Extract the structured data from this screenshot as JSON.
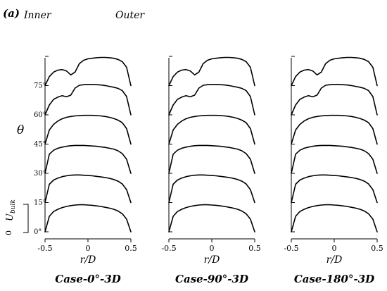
{
  "figure": {
    "panel_label": "(a)",
    "inner_label": "Inner",
    "outer_label": "Outer",
    "theta_label": "θ",
    "ubulk_label": "U",
    "ubulk_sub": "bulk",
    "ubulk_zero": "0"
  },
  "chart_data": [
    {
      "type": "line",
      "title": "Case-0°-3D",
      "xlabel": "r/D",
      "ylabel": "θ",
      "xlim": [
        -0.5,
        0.5
      ],
      "xticks": [
        "-0.5",
        "0",
        "0.5"
      ],
      "yticks": [
        "0°",
        "15°",
        "30°",
        "45°",
        "60°",
        "75°"
      ],
      "x": [
        -0.5,
        -0.45,
        -0.4,
        -0.35,
        -0.3,
        -0.25,
        -0.2,
        -0.15,
        -0.1,
        -0.05,
        0,
        0.05,
        0.1,
        0.15,
        0.2,
        0.25,
        0.3,
        0.35,
        0.4,
        0.45,
        0.5
      ],
      "series": [
        {
          "offset_deg": 0,
          "values": [
            0.0,
            0.55,
            0.72,
            0.8,
            0.86,
            0.9,
            0.93,
            0.95,
            0.96,
            0.96,
            0.95,
            0.94,
            0.92,
            0.9,
            0.87,
            0.84,
            0.8,
            0.74,
            0.64,
            0.45,
            0.0
          ]
        },
        {
          "offset_deg": 15,
          "values": [
            0.0,
            0.65,
            0.8,
            0.87,
            0.92,
            0.95,
            0.97,
            0.98,
            0.98,
            0.97,
            0.96,
            0.95,
            0.93,
            0.91,
            0.89,
            0.86,
            0.82,
            0.76,
            0.66,
            0.46,
            0.0
          ]
        },
        {
          "offset_deg": 30,
          "values": [
            0.0,
            0.68,
            0.82,
            0.89,
            0.93,
            0.96,
            0.98,
            0.99,
            0.99,
            0.99,
            0.98,
            0.97,
            0.96,
            0.94,
            0.92,
            0.89,
            0.86,
            0.8,
            0.7,
            0.5,
            0.0
          ]
        },
        {
          "offset_deg": 45,
          "values": [
            0.0,
            0.5,
            0.7,
            0.82,
            0.9,
            0.95,
            0.98,
            1.0,
            1.01,
            1.02,
            1.02,
            1.02,
            1.01,
            1.0,
            0.98,
            0.95,
            0.91,
            0.85,
            0.76,
            0.55,
            0.0
          ]
        },
        {
          "offset_deg": 60,
          "values": [
            0.0,
            0.35,
            0.55,
            0.63,
            0.68,
            0.64,
            0.7,
            0.95,
            1.05,
            1.07,
            1.08,
            1.08,
            1.07,
            1.06,
            1.04,
            1.01,
            0.98,
            0.94,
            0.86,
            0.65,
            0.0
          ]
        },
        {
          "offset_deg": 75,
          "values": [
            0.0,
            0.32,
            0.48,
            0.55,
            0.57,
            0.52,
            0.38,
            0.48,
            0.78,
            0.9,
            0.95,
            0.97,
            0.99,
            1.0,
            1.0,
            0.99,
            0.97,
            0.93,
            0.85,
            0.65,
            0.0
          ]
        }
      ]
    },
    {
      "type": "line",
      "title": "Case-90°-3D",
      "xlabel": "r/D",
      "xlim": [
        -0.5,
        0.5
      ],
      "xticks": [
        "-0.5",
        "0",
        "0.5"
      ],
      "x": [
        -0.5,
        -0.45,
        -0.4,
        -0.35,
        -0.3,
        -0.25,
        -0.2,
        -0.15,
        -0.1,
        -0.05,
        0,
        0.05,
        0.1,
        0.15,
        0.2,
        0.25,
        0.3,
        0.35,
        0.4,
        0.45,
        0.5
      ],
      "series": [
        {
          "offset_deg": 0,
          "values": [
            0.0,
            0.55,
            0.72,
            0.8,
            0.86,
            0.9,
            0.93,
            0.95,
            0.96,
            0.96,
            0.95,
            0.94,
            0.92,
            0.9,
            0.87,
            0.84,
            0.8,
            0.74,
            0.64,
            0.45,
            0.0
          ]
        },
        {
          "offset_deg": 15,
          "values": [
            0.0,
            0.65,
            0.8,
            0.87,
            0.92,
            0.95,
            0.97,
            0.98,
            0.98,
            0.97,
            0.96,
            0.95,
            0.93,
            0.91,
            0.89,
            0.86,
            0.82,
            0.76,
            0.66,
            0.46,
            0.0
          ]
        },
        {
          "offset_deg": 30,
          "values": [
            0.0,
            0.68,
            0.82,
            0.89,
            0.93,
            0.96,
            0.98,
            0.99,
            0.99,
            0.99,
            0.98,
            0.97,
            0.96,
            0.94,
            0.92,
            0.89,
            0.86,
            0.8,
            0.7,
            0.5,
            0.0
          ]
        },
        {
          "offset_deg": 45,
          "values": [
            0.0,
            0.5,
            0.7,
            0.82,
            0.9,
            0.95,
            0.98,
            1.0,
            1.01,
            1.02,
            1.02,
            1.02,
            1.01,
            1.0,
            0.98,
            0.95,
            0.91,
            0.85,
            0.76,
            0.55,
            0.0
          ]
        },
        {
          "offset_deg": 60,
          "values": [
            0.0,
            0.35,
            0.55,
            0.63,
            0.68,
            0.64,
            0.7,
            0.95,
            1.05,
            1.07,
            1.08,
            1.08,
            1.07,
            1.06,
            1.04,
            1.01,
            0.98,
            0.94,
            0.86,
            0.65,
            0.0
          ]
        },
        {
          "offset_deg": 75,
          "values": [
            0.0,
            0.32,
            0.48,
            0.55,
            0.57,
            0.52,
            0.38,
            0.48,
            0.78,
            0.9,
            0.95,
            0.97,
            0.99,
            1.0,
            1.0,
            0.99,
            0.97,
            0.93,
            0.85,
            0.65,
            0.0
          ]
        }
      ]
    },
    {
      "type": "line",
      "title": "Case-180°-3D",
      "xlabel": "r/D",
      "xlim": [
        -0.5,
        0.5
      ],
      "xticks": [
        "-0.5",
        "0",
        "0.5"
      ],
      "x": [
        -0.5,
        -0.45,
        -0.4,
        -0.35,
        -0.3,
        -0.25,
        -0.2,
        -0.15,
        -0.1,
        -0.05,
        0,
        0.05,
        0.1,
        0.15,
        0.2,
        0.25,
        0.3,
        0.35,
        0.4,
        0.45,
        0.5
      ],
      "series": [
        {
          "offset_deg": 0,
          "values": [
            0.0,
            0.55,
            0.72,
            0.8,
            0.86,
            0.9,
            0.93,
            0.95,
            0.96,
            0.96,
            0.95,
            0.94,
            0.92,
            0.9,
            0.87,
            0.84,
            0.8,
            0.74,
            0.64,
            0.45,
            0.0
          ]
        },
        {
          "offset_deg": 15,
          "values": [
            0.0,
            0.65,
            0.8,
            0.87,
            0.92,
            0.95,
            0.97,
            0.98,
            0.98,
            0.97,
            0.96,
            0.95,
            0.93,
            0.91,
            0.89,
            0.86,
            0.82,
            0.76,
            0.66,
            0.46,
            0.0
          ]
        },
        {
          "offset_deg": 30,
          "values": [
            0.0,
            0.68,
            0.82,
            0.89,
            0.93,
            0.96,
            0.98,
            0.99,
            0.99,
            0.99,
            0.98,
            0.97,
            0.96,
            0.94,
            0.92,
            0.89,
            0.86,
            0.8,
            0.7,
            0.5,
            0.0
          ]
        },
        {
          "offset_deg": 45,
          "values": [
            0.0,
            0.5,
            0.7,
            0.82,
            0.9,
            0.95,
            0.98,
            1.0,
            1.01,
            1.02,
            1.02,
            1.02,
            1.01,
            1.0,
            0.98,
            0.95,
            0.91,
            0.85,
            0.76,
            0.55,
            0.0
          ]
        },
        {
          "offset_deg": 60,
          "values": [
            0.0,
            0.35,
            0.55,
            0.63,
            0.68,
            0.64,
            0.7,
            0.95,
            1.05,
            1.07,
            1.08,
            1.08,
            1.07,
            1.06,
            1.04,
            1.01,
            0.98,
            0.94,
            0.86,
            0.65,
            0.0
          ]
        },
        {
          "offset_deg": 75,
          "values": [
            0.0,
            0.32,
            0.48,
            0.55,
            0.57,
            0.52,
            0.38,
            0.48,
            0.78,
            0.9,
            0.95,
            0.97,
            0.99,
            1.0,
            1.0,
            0.99,
            0.97,
            0.93,
            0.85,
            0.65,
            0.0
          ]
        }
      ]
    }
  ]
}
